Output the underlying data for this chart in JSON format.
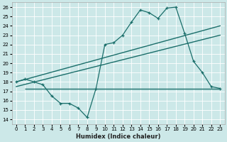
{
  "xlabel": "Humidex (Indice chaleur)",
  "ylabel": "",
  "bg_color": "#cce8e8",
  "line_color": "#1a6e6a",
  "xlim": [
    -0.5,
    23.5
  ],
  "ylim": [
    13.5,
    26.5
  ],
  "yticks": [
    14,
    15,
    16,
    17,
    18,
    19,
    20,
    21,
    22,
    23,
    24,
    25,
    26
  ],
  "xticks": [
    0,
    1,
    2,
    3,
    4,
    5,
    6,
    7,
    8,
    9,
    10,
    11,
    12,
    13,
    14,
    15,
    16,
    17,
    18,
    19,
    20,
    21,
    22,
    23
  ],
  "main_x": [
    0,
    1,
    2,
    3,
    4,
    5,
    6,
    7,
    8,
    9,
    10,
    11,
    12,
    13,
    14,
    15,
    16,
    17,
    18,
    19,
    20,
    21,
    22,
    23
  ],
  "main_y": [
    18.0,
    18.3,
    18.0,
    17.7,
    16.5,
    15.7,
    15.7,
    15.2,
    14.2,
    17.3,
    22.0,
    22.2,
    23.0,
    24.4,
    25.7,
    25.4,
    24.8,
    25.9,
    26.0,
    23.2,
    20.2,
    19.0,
    17.5,
    17.3
  ],
  "trend1_x": [
    0,
    23
  ],
  "trend1_y": [
    18.0,
    24.0
  ],
  "trend2_x": [
    0,
    23
  ],
  "trend2_y": [
    17.5,
    23.0
  ],
  "hline_y": 17.3,
  "hline_x0": 1,
  "hline_x1": 23
}
